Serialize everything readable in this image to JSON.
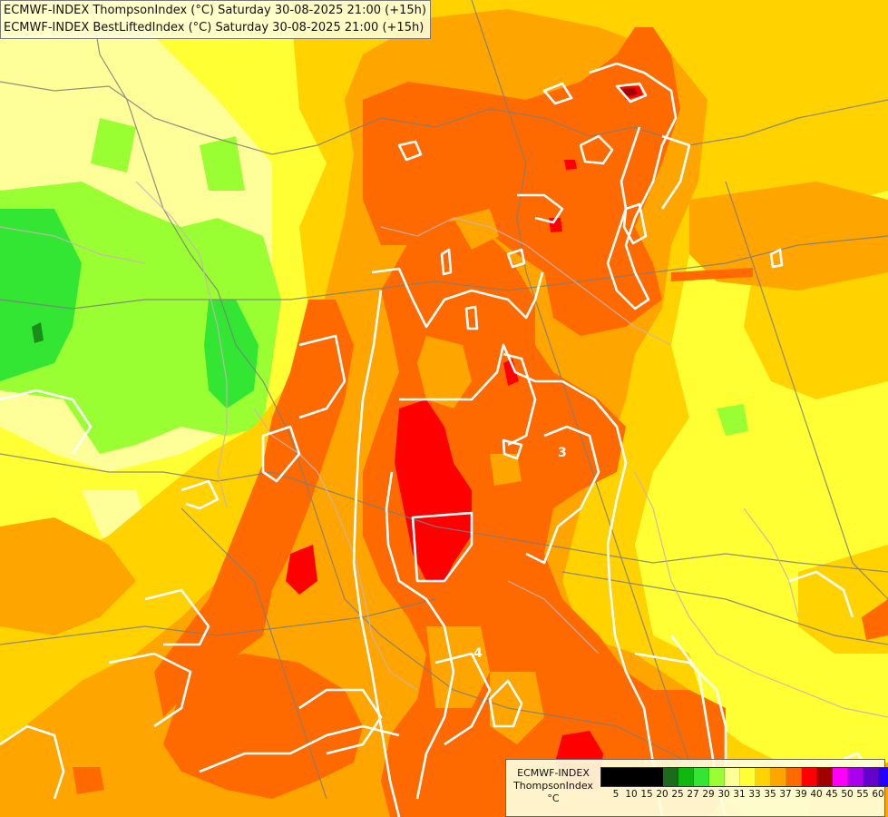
{
  "titles": {
    "line1": "ECMWF-INDEX ThompsonIndex (°C) Saturday 30-08-2025 21:00 (+15h)",
    "line2": "ECMWF-INDEX BestLiftedIndex (°C) Saturday 30-08-2025 21:00 (+15h)"
  },
  "legend": {
    "model": "ECMWF-INDEX",
    "parameter": "ThompsonIndex",
    "unit": "°C",
    "ticks": [
      "5",
      "10",
      "15",
      "20",
      "25",
      "27",
      "29",
      "30",
      "31",
      "33",
      "35",
      "37",
      "39",
      "40",
      "45",
      "50",
      "55",
      "60"
    ],
    "colors": [
      "#000000",
      "#000000",
      "#000000",
      "#000000",
      "#1a6b1a",
      "#0fb80f",
      "#33e633",
      "#99ff33",
      "#ffff99",
      "#ffff33",
      "#ffd200",
      "#ffa500",
      "#ff6a00",
      "#ff0000",
      "#a00000",
      "#ff00ff",
      "#aa00ee",
      "#6600cc",
      "#2200ff"
    ]
  },
  "contours": {
    "label_values": [
      "3",
      "4"
    ],
    "color": "#ffffff"
  },
  "palette": {
    "green_dark": "#00cc33",
    "green": "#33e633",
    "green_light": "#99ff33",
    "pale_yellow": "#ffff99",
    "yellow": "#ffff33",
    "orange_light": "#ffd200",
    "orange": "#ffa500",
    "orange_dark": "#ff6a00",
    "red": "#ff0000",
    "dark_red": "#a00000",
    "border": "#7d7d7d"
  }
}
